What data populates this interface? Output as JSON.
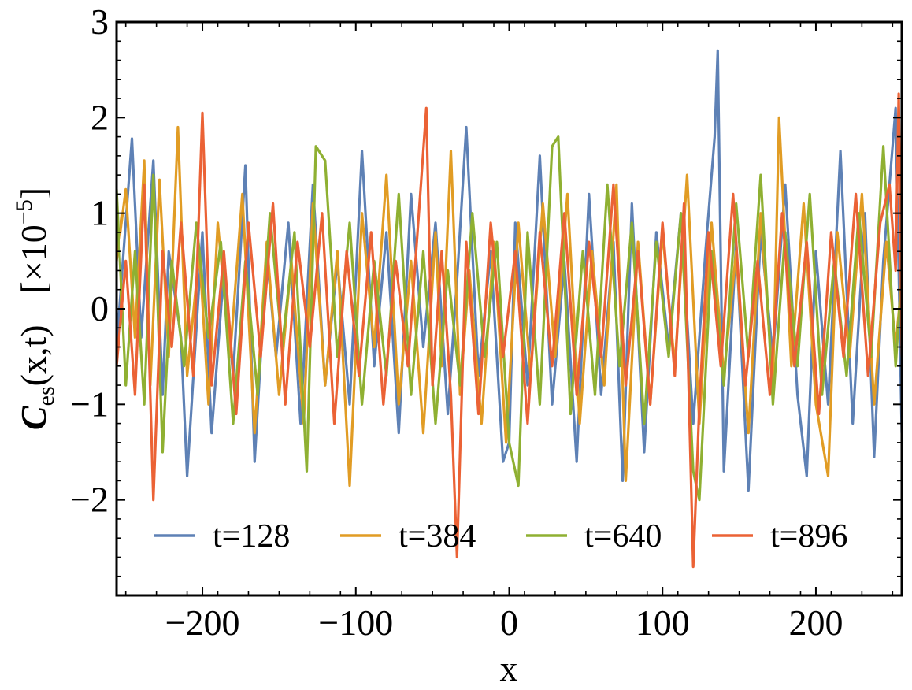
{
  "chart_data": {
    "type": "line",
    "title": "",
    "xlabel": "x",
    "ylabel": {
      "symbol": "C",
      "subscript": "es",
      "args": "(x,t)",
      "scale_prefix": "[×10",
      "scale_exponent": "−5",
      "scale_suffix": "]"
    },
    "xlim": [
      -256,
      256
    ],
    "ylim": [
      -3,
      3
    ],
    "x_ticks": [
      {
        "value": -200,
        "label": "−200"
      },
      {
        "value": -100,
        "label": "−100"
      },
      {
        "value": 0,
        "label": "0"
      },
      {
        "value": 100,
        "label": "100"
      },
      {
        "value": 200,
        "label": "200"
      }
    ],
    "y_ticks": [
      {
        "value": -2,
        "label": "−2"
      },
      {
        "value": -1,
        "label": "−1"
      },
      {
        "value": 0,
        "label": "0"
      },
      {
        "value": 1,
        "label": "1"
      },
      {
        "value": 2,
        "label": "2"
      },
      {
        "value": 3,
        "label": "3"
      }
    ],
    "grid": false,
    "legend_position": "bottom-center",
    "series": [
      {
        "name": "t=128",
        "color": "#5E81B5",
        "x": [
          -256,
          -246,
          -240,
          -232,
          -226,
          -222,
          -214,
          -210,
          -200,
          -194,
          -186,
          -180,
          -172,
          -166,
          -158,
          -152,
          -144,
          -136,
          -128,
          -120,
          -112,
          -104,
          -96,
          -88,
          -80,
          -72,
          -64,
          -56,
          -48,
          -40,
          -34,
          -28,
          -20,
          -12,
          -4,
          0,
          4,
          12,
          20,
          28,
          36,
          44,
          52,
          60,
          68,
          74,
          80,
          88,
          96,
          104,
          112,
          120,
          128,
          134,
          136,
          140,
          148,
          156,
          164,
          172,
          180,
          188,
          194,
          200,
          208,
          216,
          224,
          232,
          238,
          244,
          252,
          256
        ],
        "y": [
          -0.4,
          1.78,
          -0.3,
          1.55,
          -0.9,
          0.6,
          -0.3,
          -1.75,
          0.8,
          -1.3,
          0.4,
          -0.7,
          1.5,
          -1.6,
          0.6,
          -0.5,
          0.9,
          -1.2,
          1.3,
          -0.8,
          0.5,
          -1.0,
          1.65,
          -0.6,
          0.8,
          -1.3,
          1.2,
          -0.4,
          0.9,
          -1.1,
          0.3,
          1.9,
          -0.7,
          0.6,
          -1.6,
          -1.4,
          0.9,
          -0.8,
          1.6,
          -1.0,
          0.5,
          -1.6,
          1.2,
          -0.9,
          0.7,
          -1.8,
          1.1,
          -1.5,
          0.8,
          -0.4,
          1.0,
          -1.2,
          0.6,
          1.8,
          2.7,
          -1.7,
          0.7,
          -1.9,
          0.8,
          -0.5,
          1.3,
          -0.9,
          -1.75,
          0.6,
          -1.0,
          1.65,
          -1.2,
          1.0,
          -1.55,
          0.5,
          2.1,
          -1.3
        ]
      },
      {
        "name": "t=384",
        "color": "#E19C24",
        "x": [
          -256,
          -250,
          -244,
          -238,
          -234,
          -228,
          -222,
          -216,
          -210,
          -202,
          -196,
          -190,
          -182,
          -174,
          -166,
          -158,
          -150,
          -142,
          -134,
          -128,
          -120,
          -112,
          -104,
          -96,
          -88,
          -80,
          -72,
          -64,
          -56,
          -48,
          -44,
          -38,
          -32,
          -26,
          -18,
          -10,
          -2,
          6,
          14,
          22,
          30,
          38,
          46,
          54,
          62,
          70,
          76,
          84,
          92,
          100,
          108,
          116,
          124,
          132,
          140,
          148,
          156,
          164,
          172,
          176,
          184,
          192,
          200,
          208,
          214,
          222,
          230,
          238,
          246,
          252,
          256
        ],
        "y": [
          0.5,
          1.25,
          -0.3,
          1.55,
          -0.8,
          1.35,
          -0.5,
          1.9,
          -0.7,
          0.6,
          -1.0,
          0.9,
          -0.5,
          1.2,
          -1.3,
          0.7,
          -0.9,
          0.5,
          -1.2,
          1.1,
          -0.8,
          0.6,
          -1.85,
          1.0,
          -0.4,
          1.4,
          -1.0,
          0.5,
          -1.3,
          0.8,
          -0.6,
          1.65,
          -0.9,
          0.4,
          -1.2,
          0.7,
          -1.4,
          0.9,
          -0.7,
          1.1,
          -0.5,
          1.2,
          -1.2,
          0.6,
          -0.8,
          1.3,
          -1.8,
          0.7,
          -1.0,
          0.8,
          -0.6,
          1.4,
          -1.2,
          0.9,
          -0.7,
          0.6,
          -1.3,
          1.0,
          -0.8,
          2.0,
          -0.6,
          1.1,
          -1.0,
          -1.75,
          0.8,
          -0.5,
          1.2,
          -1.0,
          0.7,
          -0.4,
          0.3
        ]
      },
      {
        "name": "t=640",
        "color": "#8FB032",
        "x": [
          -256,
          -250,
          -244,
          -238,
          -232,
          -226,
          -220,
          -212,
          -204,
          -196,
          -188,
          -180,
          -172,
          -164,
          -156,
          -148,
          -140,
          -132,
          -126,
          -120,
          -112,
          -104,
          -96,
          -88,
          -80,
          -72,
          -64,
          -56,
          -48,
          -40,
          -32,
          -24,
          -16,
          -8,
          0,
          6,
          12,
          20,
          28,
          32,
          40,
          48,
          56,
          64,
          72,
          80,
          88,
          96,
          104,
          112,
          120,
          124,
          132,
          140,
          148,
          156,
          164,
          172,
          180,
          188,
          196,
          204,
          212,
          220,
          228,
          236,
          244,
          252,
          256
        ],
        "y": [
          1.25,
          -0.8,
          0.6,
          -1.0,
          1.4,
          -1.5,
          0.5,
          -0.6,
          0.9,
          -0.3,
          0.7,
          -1.2,
          0.5,
          -0.9,
          1.0,
          -0.4,
          0.8,
          -1.7,
          1.7,
          1.55,
          -0.5,
          0.9,
          -1.0,
          0.5,
          -0.7,
          1.2,
          -0.9,
          0.6,
          -1.2,
          0.4,
          -0.8,
          1.0,
          -0.5,
          0.7,
          -1.4,
          -1.85,
          0.8,
          -1.0,
          1.7,
          1.8,
          -1.1,
          0.6,
          -0.9,
          1.3,
          -0.6,
          0.9,
          -1.2,
          0.7,
          -0.5,
          1.0,
          -1.7,
          -2.0,
          0.6,
          -0.8,
          1.1,
          -0.5,
          1.4,
          -1.0,
          0.8,
          -0.6,
          1.2,
          -0.9,
          0.5,
          -0.7,
          1.0,
          -0.5,
          1.7,
          -0.6,
          0.4
        ]
      },
      {
        "name": "t=896",
        "color": "#EB6235",
        "x": [
          -256,
          -250,
          -244,
          -238,
          -232,
          -226,
          -220,
          -214,
          -206,
          -200,
          -194,
          -186,
          -178,
          -170,
          -162,
          -154,
          -146,
          -138,
          -130,
          -122,
          -114,
          -106,
          -98,
          -90,
          -82,
          -74,
          -66,
          -58,
          -54,
          -50,
          -44,
          -38,
          -34,
          -28,
          -20,
          -12,
          -4,
          4,
          12,
          20,
          28,
          36,
          44,
          52,
          60,
          68,
          76,
          84,
          92,
          100,
          108,
          114,
          120,
          124,
          130,
          138,
          146,
          154,
          162,
          170,
          178,
          186,
          194,
          202,
          210,
          218,
          226,
          234,
          242,
          248,
          252,
          254,
          256
        ],
        "y": [
          -0.6,
          0.5,
          -0.9,
          1.3,
          -2.0,
          0.6,
          -0.4,
          0.9,
          -0.7,
          2.05,
          -0.8,
          0.6,
          -1.1,
          0.9,
          -0.5,
          1.1,
          -1.0,
          0.7,
          -0.4,
          1.0,
          -1.2,
          0.6,
          -0.7,
          0.8,
          -1.0,
          0.5,
          -0.6,
          1.2,
          2.1,
          -0.8,
          0.6,
          -0.9,
          -2.6,
          0.7,
          -1.1,
          0.9,
          -0.5,
          0.6,
          -1.2,
          0.8,
          -0.6,
          1.0,
          -0.9,
          0.7,
          -0.5,
          1.3,
          -0.8,
          0.6,
          -1.0,
          0.9,
          -0.7,
          1.1,
          -2.7,
          -1.0,
          0.8,
          -0.6,
          1.2,
          -0.8,
          0.5,
          -0.9,
          1.0,
          -0.6,
          0.7,
          -1.1,
          0.8,
          -0.5,
          1.2,
          -0.7,
          0.9,
          1.3,
          0.4,
          2.25,
          -0.5
        ]
      }
    ]
  }
}
